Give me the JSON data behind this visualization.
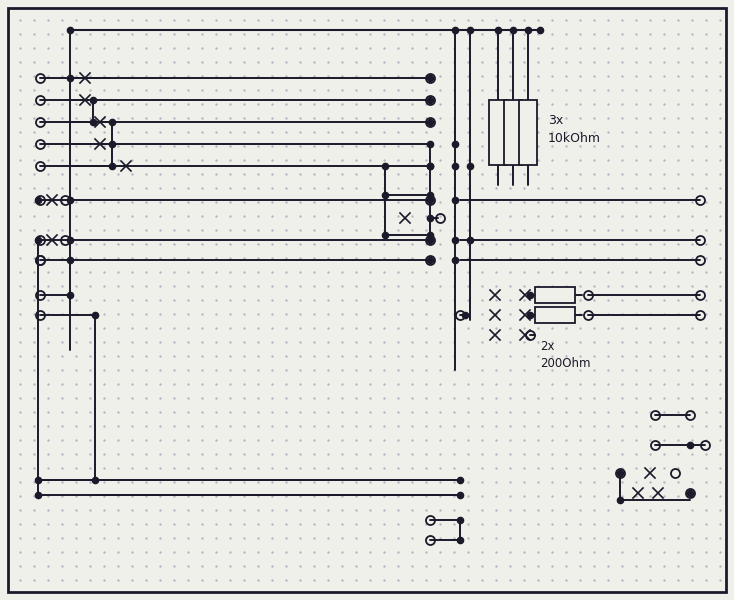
{
  "bg_color": "#f0f0eb",
  "line_color": "#1a1a2a",
  "dot_grid_color": "#b0b5c0",
  "lw": 1.4,
  "resistor_10k_label": "3x\n10kOhm",
  "resistor_200_label": "2x\n200Ohm",
  "fig_width": 7.34,
  "fig_height": 6.0,
  "dpi": 100
}
